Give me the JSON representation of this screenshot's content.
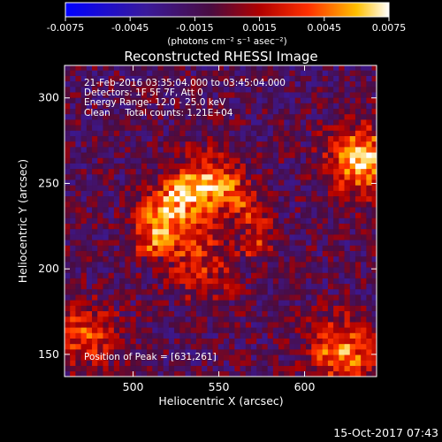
{
  "chart_data": {
    "type": "heatmap",
    "title": "Reconstructed RHESSI Image",
    "xlabel": "Heliocentric X (arcsec)",
    "ylabel": "Heliocentric Y (arcsec)",
    "xlim": [
      460,
      642
    ],
    "ylim": [
      137,
      319
    ],
    "x_ticks": [
      500,
      550,
      600
    ],
    "y_ticks": [
      150,
      200,
      250,
      300
    ],
    "colorbar": {
      "range": [
        -0.0075,
        0.0075
      ],
      "tick_labels": [
        "-0.0075",
        "-0.0045",
        "-0.0015",
        "0.0015",
        "0.0045",
        "0.0075"
      ],
      "ticks": [
        -0.0075,
        -0.0045,
        -0.0015,
        0.0015,
        0.0045,
        0.0075
      ],
      "unit_label": "(photons cm⁻² s⁻¹ asec⁻²)"
    },
    "annotations": [
      "21-Feb-2016 03:35:04.000 to 03:45:04.000",
      "Detectors: 1F 5F 7F, Att 0",
      "Energy Range: 12.0 - 25.0 keV",
      "Clean     Total counts: 1.21E+04"
    ],
    "peak_label": "Position of Peak = [631,261]",
    "peak": [
      631,
      261
    ],
    "sources": [
      {
        "x": 525,
        "y": 225,
        "value": 0.005
      },
      {
        "x": 542,
        "y": 250,
        "value": 0.004
      },
      {
        "x": 632,
        "y": 262,
        "value": 0.0075
      },
      {
        "x": 620,
        "y": 150,
        "value": 0.006
      },
      {
        "x": 470,
        "y": 160,
        "value": 0.0045
      },
      {
        "x": 540,
        "y": 196,
        "value": 0.003
      }
    ],
    "date_label": "15-Oct-2017 07:43"
  }
}
